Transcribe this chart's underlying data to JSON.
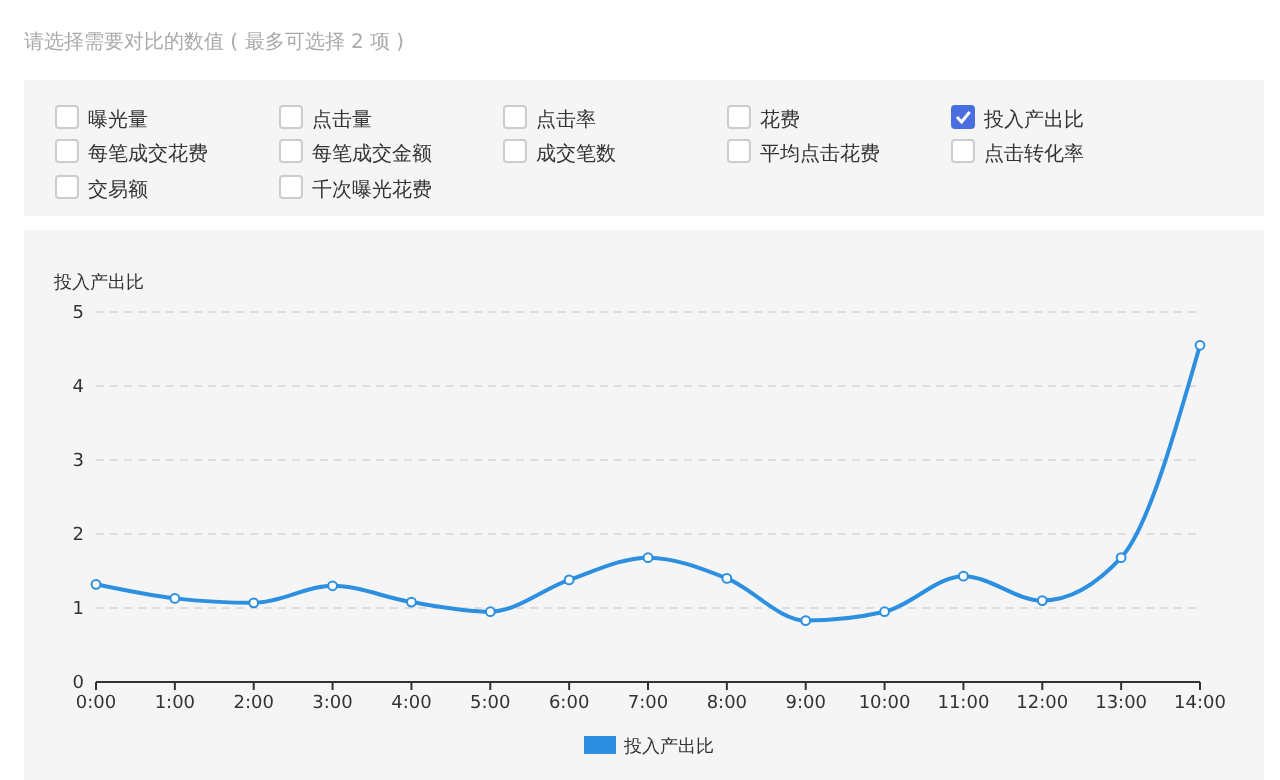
{
  "chart_data": [
    {
      "type": "other",
      "title": "请选择需要对比的数值 ( 最多可选择 2 项 )",
      "categories": [
        "曝光量",
        "点击量",
        "点击率",
        "花费",
        null,
        "每笔成交花费",
        "每笔成交金额",
        "成交笔数",
        "平均点击花费",
        "点击转化率",
        "交易额",
        "千次曝光花费"
      ],
      "needle": "投入产出比"
    },
    {
      "type": "line",
      "ylabel": "投入产出比",
      "categories": [
        "0:00",
        "1:00",
        "2:00",
        "3:00",
        "4:00",
        "5:00",
        "6:00",
        "7:00",
        "8:00",
        "9:00",
        "10:00",
        "11:00",
        "12:00",
        "13:00",
        "14:00"
      ],
      "series": [
        {
          "name": "投入产出比",
          "color": "#2d8fe0",
          "values": [
            1.32,
            1.13,
            1.07,
            1.3,
            1.08,
            0.95,
            1.38,
            1.68,
            1.4,
            0.83,
            0.95,
            1.43,
            1.1,
            1.68,
            4.55
          ]
        }
      ],
      "ylim": [
        0,
        5
      ],
      "yticks": [
        0,
        1,
        2,
        3,
        4,
        5
      ],
      "grid": "y",
      "legend": "bottom",
      "marker": "circle",
      "line_style": "solid"
    }
  ]
}
